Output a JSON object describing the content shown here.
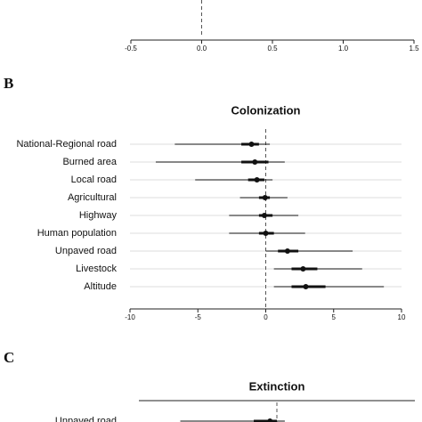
{
  "chart_data": [
    {
      "type": "forest",
      "xlim": [
        -0.5,
        1.5
      ],
      "xticks": [
        -0.5,
        {
          "value": 0,
          "label": "0.0"
        },
        0.5,
        {
          "value": 1,
          "label": "1.0"
        },
        1.5
      ]
    },
    {
      "type": "forest",
      "panel": "B",
      "title": "Colonization",
      "categories": [
        "National-Regional road",
        "Burned area",
        "Local road",
        "Agricultural",
        "Highway",
        "Human population",
        "Unpaved road",
        "Livestock",
        "Altitude"
      ],
      "values": [
        -1.05,
        -0.8,
        -0.65,
        -0.05,
        -0.1,
        0,
        1.6,
        2.75,
        2.95
      ],
      "ci_low": [
        -6.7,
        -8.1,
        -5.2,
        -1.9,
        -2.7,
        -2.7,
        0,
        0.6,
        0.6
      ],
      "ci_high": [
        0.3,
        1.4,
        0.5,
        1.6,
        2.4,
        2.9,
        6.4,
        7.1,
        8.7
      ],
      "iqr_low": [
        -1.8,
        -1.8,
        -1.3,
        -0.5,
        -0.5,
        -0.5,
        0.9,
        1.9,
        1.9
      ],
      "iqr_high": [
        -0.5,
        0.2,
        -0.1,
        0.3,
        0.5,
        0.6,
        2.4,
        3.8,
        4.4
      ],
      "xlim": [
        -10,
        10
      ],
      "xticks": [
        -10,
        -5,
        0,
        5,
        10
      ],
      "grid": true
    },
    {
      "type": "forest",
      "panel": "C",
      "title": "Extinction",
      "categories": [
        "Unpaved road"
      ],
      "values": [
        -0.2
      ],
      "ci_low": [
        -2.8
      ],
      "ci_high": [
        0.23
      ],
      "iqr_low": [
        -0.67
      ],
      "iqr_high": [
        0
      ],
      "xlim": [
        -4,
        4
      ]
    }
  ]
}
